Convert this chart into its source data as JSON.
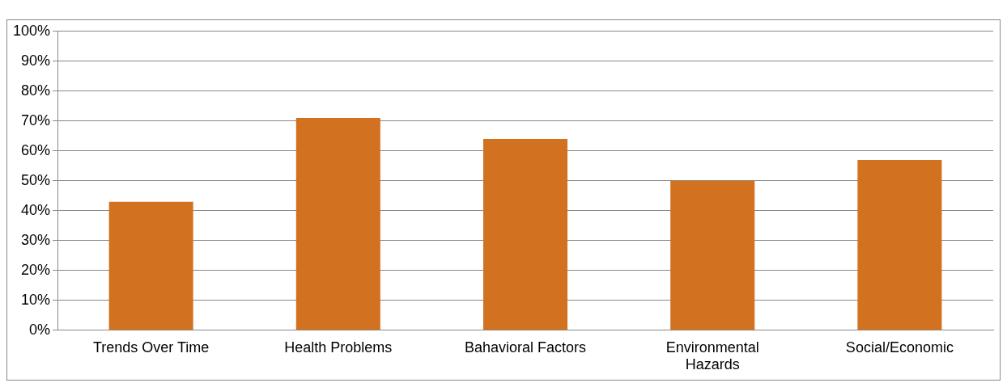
{
  "chart_data": {
    "type": "bar",
    "categories": [
      "Trends Over Time",
      "Health Problems",
      "Bahavioral Factors",
      "Environmental Hazards",
      "Social/Economic"
    ],
    "values": [
      43,
      71,
      64,
      50,
      57
    ],
    "color": "#d2711f",
    "ylim": [
      0,
      100
    ],
    "yticks": [
      {
        "value": 0,
        "label": "0%"
      },
      {
        "value": 10,
        "label": "10%"
      },
      {
        "value": 20,
        "label": "20%"
      },
      {
        "value": 30,
        "label": "30%"
      },
      {
        "value": 40,
        "label": "40%"
      },
      {
        "value": 50,
        "label": "50%"
      },
      {
        "value": 60,
        "label": "60%"
      },
      {
        "value": 70,
        "label": "70%"
      },
      {
        "value": 80,
        "label": "80%"
      },
      {
        "value": 90,
        "label": "90%"
      },
      {
        "value": 100,
        "label": "100%"
      }
    ],
    "grid": "y",
    "legend": false
  }
}
